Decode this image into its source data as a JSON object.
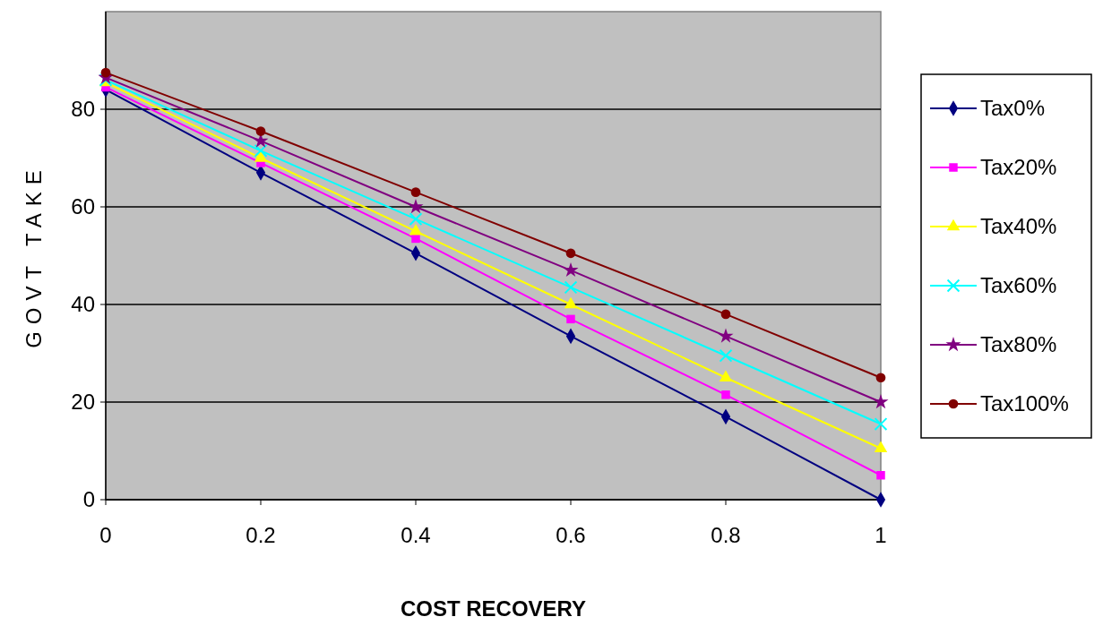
{
  "chart_data": {
    "type": "line",
    "xlabel": "COST RECOVERY",
    "ylabel": "GOVT TAKE",
    "x": [
      0,
      0.2,
      0.4,
      0.6,
      0.8,
      1
    ],
    "xlim": [
      0,
      1
    ],
    "xticks": [
      0,
      {
        "value": 0.2,
        "label": "0.2"
      },
      {
        "value": 0.4,
        "label": "0.4"
      },
      {
        "value": 0.6,
        "label": "0.6"
      },
      {
        "value": 0.8,
        "label": "0.8"
      },
      1
    ],
    "ylim": [
      0,
      100
    ],
    "yticks": [
      0,
      20,
      40,
      60,
      80
    ],
    "grid": "y",
    "legend": "right",
    "line_style": "solid",
    "series": [
      {
        "name": "Tax0%",
        "color": "#000080",
        "marker": "diamond",
        "values": [
          84,
          67,
          50.5,
          33.5,
          17,
          0
        ]
      },
      {
        "name": "Tax20%",
        "color": "#ff00ff",
        "marker": "square",
        "values": [
          84.5,
          69,
          53.5,
          37,
          21.5,
          5
        ]
      },
      {
        "name": "Tax40%",
        "color": "#ffff00",
        "marker": "triangle",
        "values": [
          85.5,
          70,
          55,
          40,
          25,
          10.5
        ]
      },
      {
        "name": "Tax60%",
        "color": "#00ffff",
        "marker": "cross",
        "values": [
          86,
          71.5,
          57.5,
          43.5,
          29.5,
          15.5
        ]
      },
      {
        "name": "Tax80%",
        "color": "#800080",
        "marker": "star",
        "values": [
          86.5,
          73.5,
          60,
          47,
          33.5,
          20
        ]
      },
      {
        "name": "Tax100%",
        "color": "#800000",
        "marker": "circle",
        "values": [
          87.5,
          75.5,
          63,
          50.5,
          38,
          25
        ]
      }
    ]
  }
}
